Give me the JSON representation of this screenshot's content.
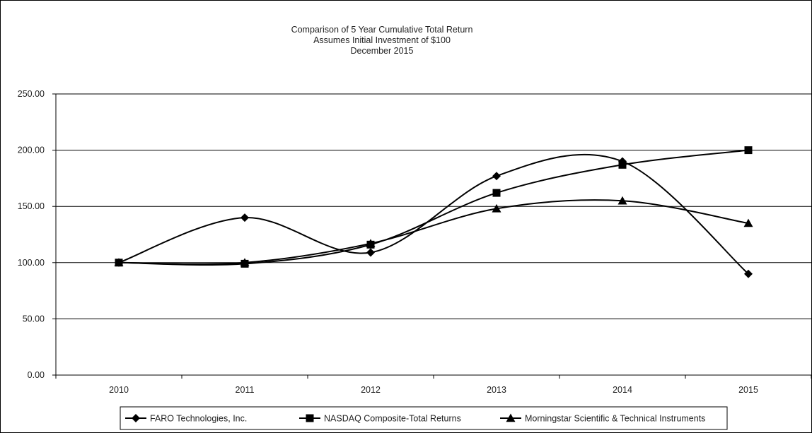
{
  "chart_data": {
    "type": "line",
    "title": "Comparison of 5 Year Cumulative Total Return",
    "subtitle": [
      "Assumes Initial Investment of $100",
      "December 2015"
    ],
    "categories": [
      "2010",
      "2011",
      "2012",
      "2013",
      "2014",
      "2015"
    ],
    "ylim": [
      0,
      250
    ],
    "yticks": [
      "0.00",
      "50.00",
      "100.00",
      "150.00",
      "200.00",
      "250.00"
    ],
    "grid": "horizontal",
    "legend_position": "bottom",
    "series": [
      {
        "name": "FARO Technologies, Inc.",
        "marker": "diamond",
        "values": [
          100,
          140,
          109,
          177,
          190,
          90
        ]
      },
      {
        "name": "NASDAQ Composite-Total Returns",
        "marker": "square",
        "values": [
          100,
          99,
          116,
          162,
          187,
          200
        ]
      },
      {
        "name": "Morningstar Scientific & Technical Instruments",
        "marker": "triangle",
        "values": [
          100,
          100,
          117,
          148,
          155,
          135
        ]
      }
    ]
  }
}
